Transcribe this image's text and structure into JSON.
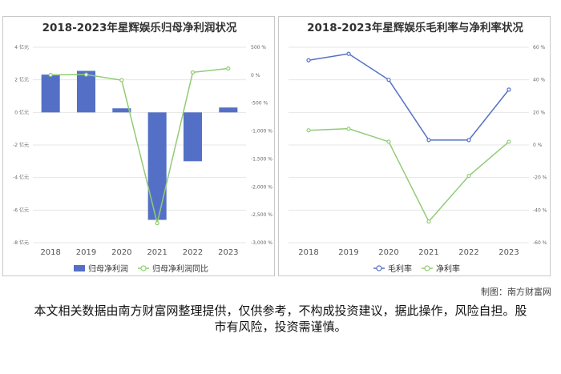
{
  "colors": {
    "bar": "#5470c6",
    "line_green": "#91cc75",
    "line_blue": "#5470c6",
    "grid": "#e6e6e6",
    "axis_text": "#666666"
  },
  "chart_data": [
    {
      "type": "bar+line",
      "title": "2018-2023年星辉娱乐归母净利润状况",
      "categories": [
        "2018",
        "2019",
        "2020",
        "2021",
        "2022",
        "2023"
      ],
      "series": [
        {
          "name": "归母净利润",
          "type": "bar",
          "axis": "left",
          "values": [
            2.32,
            2.55,
            0.25,
            -6.6,
            -3.0,
            0.3
          ]
        },
        {
          "name": "归母净利润同比",
          "type": "line",
          "axis": "right",
          "values": [
            5,
            10,
            -90,
            -2650,
            50,
            120
          ]
        }
      ],
      "left_axis": {
        "min": -8,
        "max": 4,
        "step": 2,
        "ticks": [
          "4 亿元",
          "2 亿元",
          "0 亿元",
          "-2 亿元",
          "-4 亿元",
          "-6 亿元",
          "-8 亿元"
        ]
      },
      "right_axis": {
        "min": -3000,
        "max": 500,
        "step": 500,
        "ticks": [
          "500 %",
          "0 %",
          "-500 %",
          "-1,000 %",
          "-1,500 %",
          "-2,000 %",
          "-2,500 %",
          "-3,000 %"
        ]
      },
      "legend": [
        "归母净利润",
        "归母净利润同比"
      ],
      "legend_position": "bottom",
      "grid": true
    },
    {
      "type": "line",
      "title": "2018-2023年星辉娱乐毛利率与净利率状况",
      "categories": [
        "2018",
        "2019",
        "2020",
        "2021",
        "2022",
        "2023"
      ],
      "series": [
        {
          "name": "毛利率",
          "values": [
            52,
            56,
            40,
            3,
            3,
            34
          ]
        },
        {
          "name": "净利率",
          "values": [
            9,
            10,
            2,
            -47,
            -19,
            2
          ]
        }
      ],
      "y_axis": {
        "min": -60,
        "max": 60,
        "step": 20,
        "ticks": [
          "60 %",
          "40 %",
          "20 %",
          "0 %",
          "-20 %",
          "-40 %",
          "-60 %"
        ]
      },
      "legend": [
        "毛利率",
        "净利率"
      ],
      "legend_position": "bottom",
      "grid": true
    }
  ],
  "footer": {
    "source": "制图：南方财富网",
    "disclaimer": "本文相关数据由南方财富网整理提供，仅供参考，不构成投资建议，据此操作，风险自担。股市有风险，投资需谨慎。"
  }
}
